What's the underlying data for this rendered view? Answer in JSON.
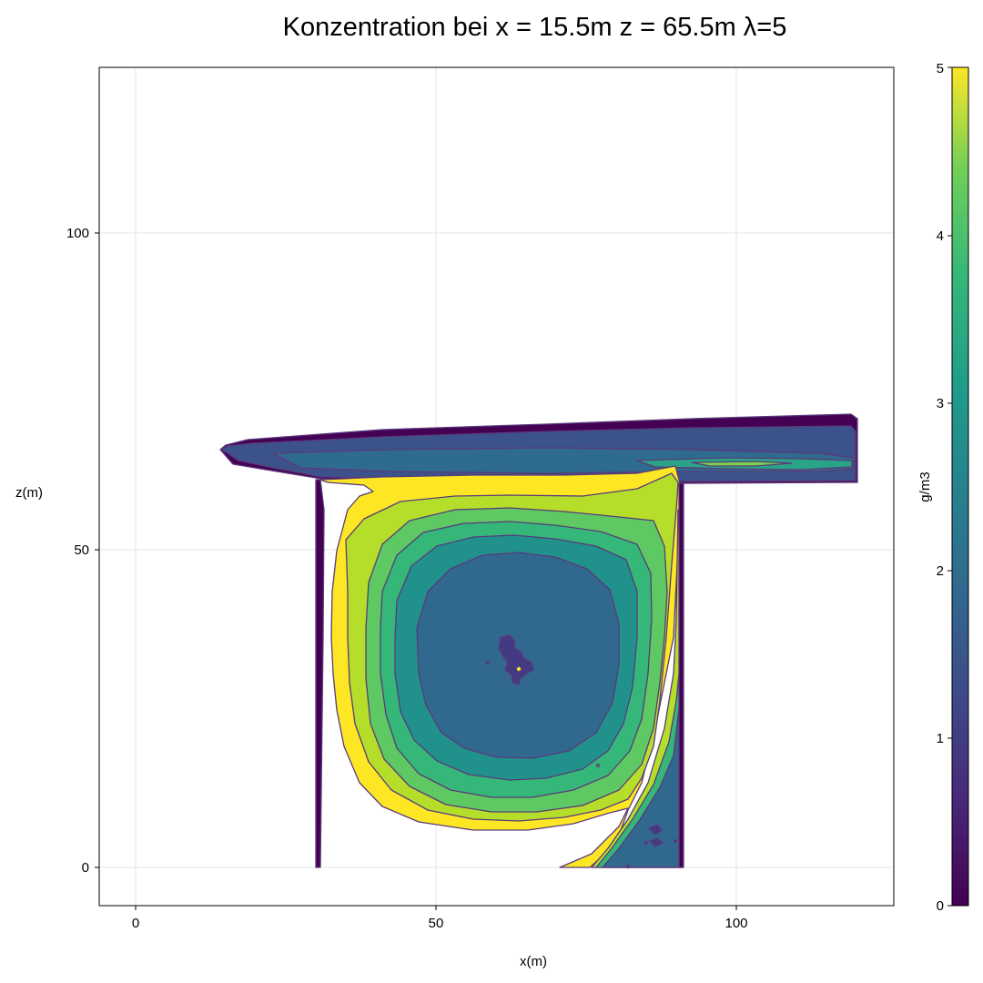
{
  "chart_data": {
    "type": "contour",
    "title": "Konzentration bei x = 15.5m z = 65.5m λ=5",
    "xlabel": "x(m)",
    "ylabel": "z(m)",
    "xlim": [
      -6,
      126
    ],
    "ylim": [
      -6,
      126
    ],
    "x_ticks": [
      0,
      50,
      100
    ],
    "y_ticks": [
      0,
      50,
      100
    ],
    "grid": true,
    "colormap": "viridis",
    "colorbar": {
      "label": "g/m3",
      "range": [
        0,
        5
      ],
      "ticks": [
        0,
        1,
        2,
        3,
        4,
        5
      ]
    },
    "level_colors": [
      "#440154",
      "#3b528b",
      "#31688e",
      "#21918c",
      "#35b779",
      "#5ec962",
      "#b5de2b",
      "#fde725"
    ],
    "line_color": "#5a3a7a",
    "regions": {
      "canyon_x": [
        30,
        91
      ],
      "canyon_z": [
        0,
        61
      ],
      "roof_layer_x": [
        14,
        120
      ],
      "roof_layer_z": [
        61,
        71
      ]
    },
    "vortex_center": {
      "x": 63,
      "z": 33,
      "min_level": 1
    },
    "fill_levels": [
      {
        "level": 5,
        "name": "outer"
      },
      {
        "level": 4.5,
        "name": "ring-1"
      },
      {
        "level": 3.5,
        "name": "ring-2"
      },
      {
        "level": 3,
        "name": "ring-3"
      },
      {
        "level": 2.5,
        "name": "ring-4"
      },
      {
        "level": 1.5,
        "name": "core"
      },
      {
        "level": 1,
        "name": "center"
      }
    ]
  }
}
